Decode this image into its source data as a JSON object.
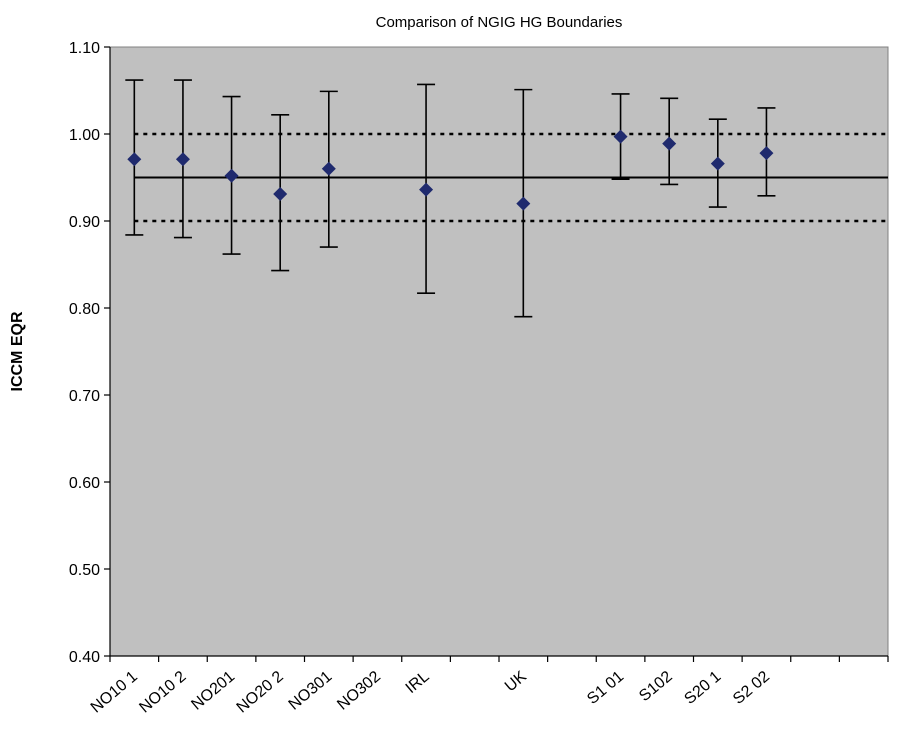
{
  "chart_data": {
    "type": "scatter",
    "title": "Comparison of NGIG HG Boundaries",
    "ylabel": "ICCM EQR",
    "xlabel": "",
    "ylim": [
      0.4,
      1.1
    ],
    "yticks": [
      "0.40",
      "0.50",
      "0.60",
      "0.70",
      "0.80",
      "0.90",
      "1.00",
      "1.10"
    ],
    "categories": [
      "NO10 1",
      "NO10 2",
      "NO201",
      "NO20 2",
      "NO301",
      "NO302",
      "IRL",
      "",
      "UK",
      "",
      "S1 01",
      "S102",
      "S20 1",
      "S2 02",
      "",
      ""
    ],
    "points": [
      {
        "slot": 0.5,
        "value": 0.971,
        "low": 0.884,
        "high": 1.062
      },
      {
        "slot": 1.5,
        "value": 0.971,
        "low": 0.881,
        "high": 1.062
      },
      {
        "slot": 2.5,
        "value": 0.952,
        "low": 0.862,
        "high": 1.043
      },
      {
        "slot": 3.5,
        "value": 0.931,
        "low": 0.843,
        "high": 1.022
      },
      {
        "slot": 4.5,
        "value": 0.96,
        "low": 0.87,
        "high": 1.049
      },
      {
        "slot": 6.5,
        "value": 0.936,
        "low": 0.817,
        "high": 1.057
      },
      {
        "slot": 8.5,
        "value": 0.92,
        "low": 0.79,
        "high": 1.051
      },
      {
        "slot": 10.5,
        "value": 0.997,
        "low": 0.948,
        "high": 1.046
      },
      {
        "slot": 11.5,
        "value": 0.989,
        "low": 0.942,
        "high": 1.041
      },
      {
        "slot": 12.5,
        "value": 0.966,
        "low": 0.916,
        "high": 1.017
      },
      {
        "slot": 13.5,
        "value": 0.978,
        "low": 0.929,
        "high": 1.03
      }
    ],
    "reference_lines": [
      {
        "value": 0.95,
        "style": "solid"
      },
      {
        "value": 1.0,
        "style": "dotted"
      },
      {
        "value": 0.9,
        "style": "dotted"
      }
    ],
    "plot_background": "#c0c0c0",
    "marker_color": "#1f2a6e",
    "grid": false,
    "legend": "none"
  }
}
